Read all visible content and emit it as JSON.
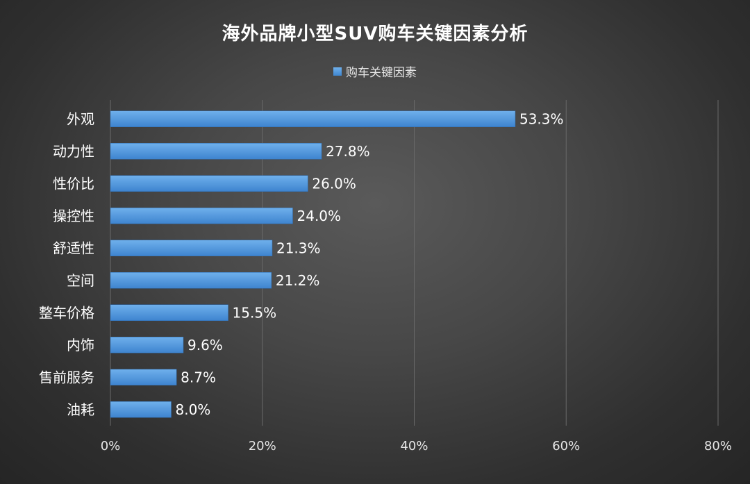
{
  "chart_data": {
    "type": "bar",
    "orientation": "horizontal",
    "title": "海外品牌小型SUV购车关键因素分析",
    "legend_position": "top",
    "categories": [
      "外观",
      "动力性",
      "性价比",
      "操控性",
      "舒适性",
      "空间",
      "整车价格",
      "内饰",
      "售前服务",
      "油耗"
    ],
    "series": [
      {
        "name": "购车关键因素",
        "values": [
          53.3,
          27.8,
          26.0,
          24.0,
          21.3,
          21.2,
          15.5,
          9.6,
          8.7,
          8.0
        ],
        "data_labels": [
          "53.3%",
          "27.8%",
          "26.0%",
          "24.0%",
          "21.3%",
          "21.2%",
          "15.5%",
          "9.6%",
          "8.7%",
          "8.0%"
        ]
      }
    ],
    "xlim": [
      0,
      80
    ],
    "xticks": [
      0,
      20,
      40,
      60,
      80
    ],
    "xtick_labels": [
      "0%",
      "20%",
      "40%",
      "60%",
      "80%"
    ],
    "grid": "vertical",
    "colors": {
      "bar": "#4a90d9",
      "background": "#3c3c3c",
      "gridline": "#6a6a6a"
    }
  }
}
